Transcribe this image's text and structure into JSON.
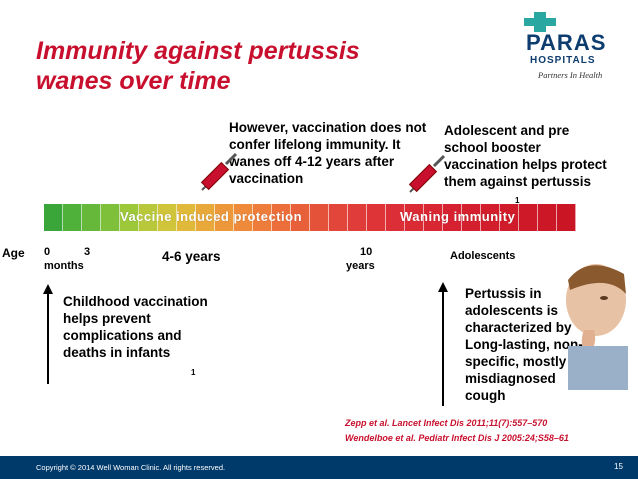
{
  "title": "Immunity against pertussis wanes over time",
  "logo": {
    "name": "PARAS",
    "sub": "HOSPITALS",
    "tagline": "Partners In Health"
  },
  "callout_top": "However, vaccination does not confer lifelong immunity. It wanes off 4-12 years after vaccination",
  "callout_right": "Adolescent and pre school booster vaccination helps protect them against pertussis",
  "bar": {
    "left_label": "Vaccine induced protection",
    "right_label": "Waning immunity"
  },
  "ages": {
    "title": "Age",
    "zero": "0",
    "three": "3",
    "months": "months",
    "ten": "10",
    "years": "years",
    "adolescents": "Adolescents"
  },
  "range_label": "4-6 years",
  "childhood_note": "Childhood vaccination helps prevent complications and deaths in infants",
  "adolescent_note": "Pertussis in adolescents is characterized by Long-lasting, non-specific, mostly misdiagnosed cough",
  "refs": [
    "Zepp et al. Lancet Infect Dis 2011;11(7):557–570",
    "Wendelboe et al. Pediatr Infect Dis J 2005:24;S58–61"
  ],
  "footer": {
    "copyright": "Copyright © 2014 Well Woman Clinic. All rights reserved.",
    "page": "15"
  },
  "colors": {
    "title": "#c8102e",
    "footer": "#003a6b",
    "logo": "#0d3c6e"
  }
}
